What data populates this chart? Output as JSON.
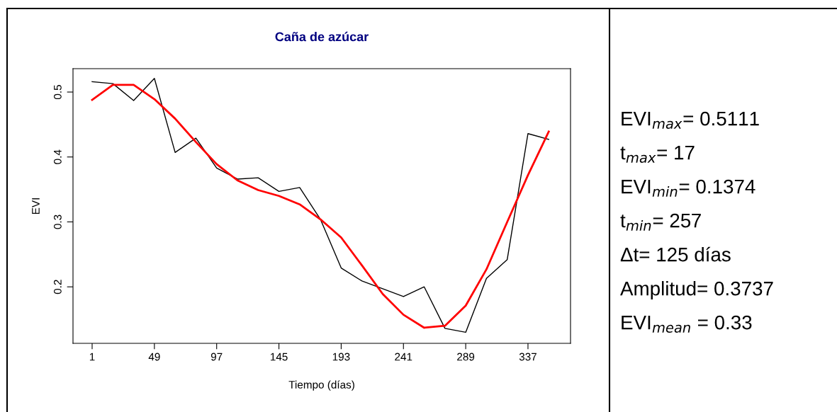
{
  "chart_data": {
    "type": "line",
    "title": "Caña de azúcar",
    "xlabel": "Tiempo (días)",
    "ylabel": "EVI",
    "x": [
      1,
      17,
      33,
      49,
      65,
      81,
      97,
      113,
      129,
      145,
      161,
      177,
      193,
      209,
      225,
      241,
      257,
      273,
      289,
      305,
      321,
      337,
      353
    ],
    "series": [
      {
        "color": "#000000",
        "values": [
          0.516,
          0.513,
          0.487,
          0.521,
          0.407,
          0.429,
          0.383,
          0.366,
          0.368,
          0.347,
          0.353,
          0.304,
          0.229,
          0.209,
          0.197,
          0.185,
          0.2,
          0.136,
          0.13,
          0.213,
          0.242,
          0.436,
          0.427
        ]
      },
      {
        "color": "#ff0000",
        "values": [
          0.488,
          0.511,
          0.511,
          0.489,
          0.459,
          0.423,
          0.389,
          0.364,
          0.349,
          0.34,
          0.327,
          0.304,
          0.276,
          0.233,
          0.189,
          0.157,
          0.137,
          0.14,
          0.171,
          0.227,
          0.3,
          0.372,
          0.439
        ]
      }
    ],
    "xlim": [
      -13.75,
      369.8
    ],
    "ylim": [
      0.113,
      0.536
    ],
    "xticks": [
      1,
      49,
      97,
      145,
      193,
      241,
      289,
      337
    ],
    "yticks": [
      0.2,
      0.3,
      0.4,
      0.5
    ],
    "grid": false,
    "legend": false,
    "annotations": [
      "EVI$_{max}$= 0.5111",
      "t$_{max}$= 17",
      "EVI$_{min}$= 0.1374",
      "t$_{min}$= 257",
      "Δt= 125 días",
      "Amplitud= 0.3737",
      "EVI$_{mean}$ = 0.33"
    ]
  }
}
